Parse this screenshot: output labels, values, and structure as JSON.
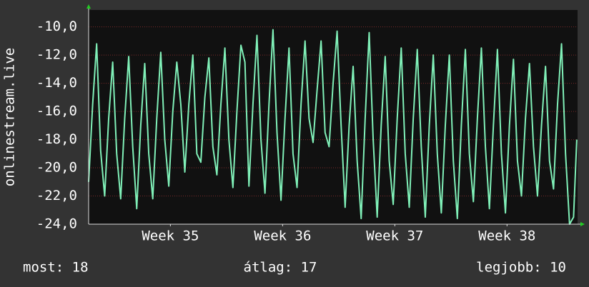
{
  "chart_data": {
    "type": "line",
    "ylabel": "onlinestream.live",
    "color": "#80f0b8",
    "x": [
      0,
      0.25,
      0.5,
      0.75,
      1,
      1.25,
      1.5,
      1.75,
      2,
      2.25,
      2.5,
      2.75,
      3,
      3.25,
      3.5,
      3.75,
      4,
      4.25,
      4.5,
      4.75,
      5,
      5.25,
      5.5,
      5.75,
      6,
      6.25,
      6.5,
      6.75,
      7,
      7.25,
      7.5,
      7.75,
      8,
      8.25,
      8.5,
      8.75,
      9,
      9.25,
      9.5,
      9.75,
      10,
      10.25,
      10.5,
      10.75,
      11,
      11.25,
      11.5,
      11.75,
      12,
      12.25,
      12.5,
      12.75,
      13,
      13.25,
      13.5,
      13.75,
      14,
      14.25,
      14.5,
      14.75,
      15,
      15.25,
      15.5,
      15.75,
      16,
      16.25,
      16.5,
      16.75,
      17,
      17.25,
      17.5,
      17.75,
      18,
      18.25,
      18.5,
      18.75,
      19,
      19.25,
      19.5,
      19.75,
      20,
      20.25,
      20.5,
      20.75,
      21,
      21.25,
      21.5,
      21.75,
      22,
      22.25,
      22.5,
      22.75,
      23,
      23.25,
      23.5,
      23.75,
      24,
      24.25,
      24.5,
      24.75,
      25,
      25.25,
      25.5,
      25.75,
      26,
      26.25,
      26.5,
      26.75,
      27,
      27.25,
      27.5,
      27.75,
      28,
      28.25,
      28.5,
      28.75,
      29,
      29.25,
      29.5,
      29.75,
      30,
      30.25,
      30.45
    ],
    "values": [
      -21.0,
      -15.5,
      -11.2,
      -18.8,
      -22.0,
      -16.5,
      -12.5,
      -19.0,
      -22.2,
      -16.5,
      -12.1,
      -18.5,
      -22.9,
      -17.0,
      -12.6,
      -19.0,
      -22.2,
      -16.5,
      -11.8,
      -18.0,
      -21.3,
      -16.0,
      -12.5,
      -15.5,
      -20.3,
      -15.5,
      -12.0,
      -19.0,
      -19.6,
      -15.0,
      -12.2,
      -18.5,
      -20.5,
      -15.5,
      -11.5,
      -18.0,
      -21.4,
      -16.0,
      -11.3,
      -12.5,
      -21.3,
      -15.5,
      -10.6,
      -18.0,
      -21.8,
      -15.5,
      -10.2,
      -17.5,
      -22.3,
      -16.5,
      -11.5,
      -19.0,
      -21.4,
      -15.5,
      -11.0,
      -16.5,
      -18.2,
      -14.5,
      -11.0,
      -17.5,
      -18.5,
      -14.0,
      -10.3,
      -17.0,
      -22.8,
      -17.0,
      -12.8,
      -19.5,
      -23.6,
      -16.5,
      -10.4,
      -18.0,
      -23.5,
      -17.0,
      -12.1,
      -19.5,
      -22.6,
      -16.5,
      -11.5,
      -19.0,
      -22.8,
      -16.5,
      -11.6,
      -18.5,
      -23.5,
      -17.0,
      -12.0,
      -19.0,
      -23.2,
      -17.0,
      -12.0,
      -19.5,
      -23.6,
      -17.0,
      -11.6,
      -19.0,
      -22.4,
      -16.5,
      -11.5,
      -18.5,
      -22.9,
      -17.0,
      -11.6,
      -19.0,
      -23.2,
      -17.0,
      -12.3,
      -19.5,
      -22.0,
      -16.5,
      -12.6,
      -18.5,
      -22.0,
      -17.0,
      -12.8,
      -19.5,
      -21.5,
      -15.5,
      -11.2,
      -19.0,
      -24.0,
      -23.5,
      -18.0
    ],
    "xlim": [
      0,
      30.5
    ],
    "xticks": [
      {
        "value": 5.1,
        "label": "Week 35"
      },
      {
        "value": 12.1,
        "label": "Week 36"
      },
      {
        "value": 19.1,
        "label": "Week 37"
      },
      {
        "value": 26.1,
        "label": "Week 38"
      }
    ],
    "ylim": [
      -24,
      -8.8
    ],
    "yticks": [
      {
        "value": -24,
        "label": "-24,0"
      },
      {
        "value": -22,
        "label": "-22,0"
      },
      {
        "value": -20,
        "label": "-20,0"
      },
      {
        "value": -18,
        "label": "-18,0"
      },
      {
        "value": -16,
        "label": "-16,0"
      },
      {
        "value": -14,
        "label": "-14,0"
      },
      {
        "value": -12,
        "label": "-12,0"
      },
      {
        "value": -10,
        "label": "-10,0"
      }
    ],
    "grid": true,
    "annotations": [
      "most: 18",
      "átlag: 17",
      "legjobb: 10"
    ]
  }
}
